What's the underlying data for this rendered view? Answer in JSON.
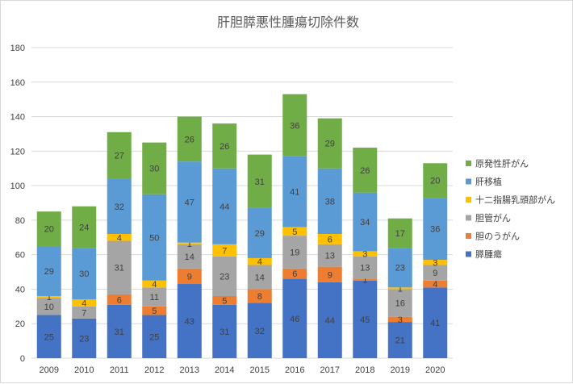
{
  "chart_data": {
    "type": "bar",
    "stacked": true,
    "title": "肝胆膵悪性腫瘍切除件数",
    "xlabel": "",
    "ylabel": "",
    "ylim": [
      0,
      180
    ],
    "yticks": [
      0,
      20,
      40,
      60,
      80,
      100,
      120,
      140,
      160,
      180
    ],
    "grid": true,
    "legend_position": "right",
    "categories": [
      "2009",
      "2010",
      "2011",
      "2012",
      "2013",
      "2014",
      "2015",
      "2016",
      "2017",
      "2018",
      "2019",
      "2020"
    ],
    "series": [
      {
        "name": "膵腫瘍",
        "color": "#4472c4",
        "values": [
          25,
          23,
          31,
          25,
          43,
          31,
          32,
          46,
          44,
          45,
          21,
          41
        ]
      },
      {
        "name": "胆のうがん",
        "color": "#ed7d31",
        "values": [
          0,
          0,
          6,
          5,
          9,
          5,
          8,
          6,
          9,
          1,
          3,
          4
        ]
      },
      {
        "name": "胆管がん",
        "color": "#a5a5a5",
        "values": [
          10,
          7,
          31,
          11,
          14,
          23,
          14,
          19,
          13,
          13,
          16,
          9
        ]
      },
      {
        "name": "十二指腸乳頭部がん",
        "color": "#ffc000",
        "values": [
          1,
          4,
          4,
          4,
          1,
          7,
          4,
          5,
          6,
          3,
          1,
          3
        ]
      },
      {
        "name": "肝移植",
        "color": "#5b9bd5",
        "values": [
          29,
          30,
          32,
          50,
          47,
          44,
          29,
          41,
          38,
          34,
          23,
          36
        ]
      },
      {
        "name": "原発性肝がん",
        "color": "#70ad47",
        "values": [
          20,
          24,
          27,
          30,
          26,
          26,
          31,
          36,
          29,
          26,
          17,
          20
        ]
      }
    ]
  }
}
